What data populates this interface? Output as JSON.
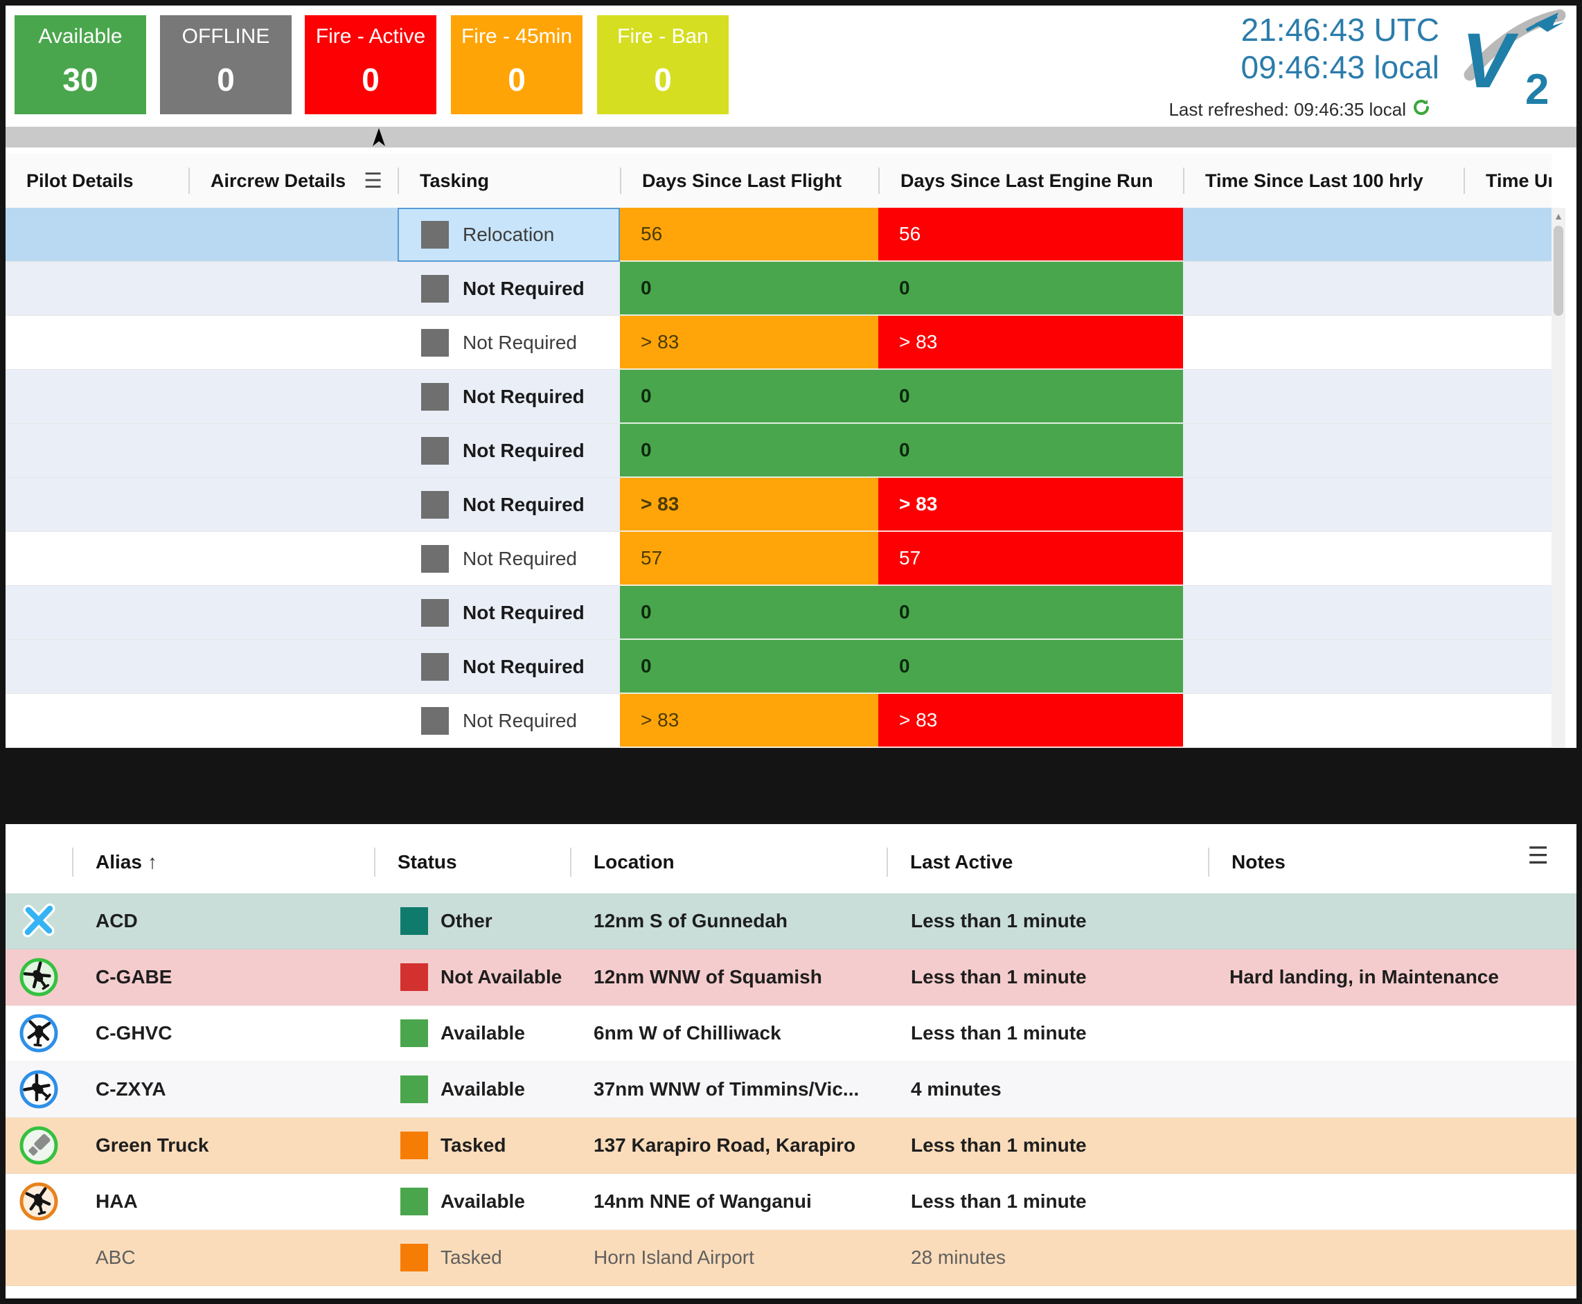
{
  "status_cards": [
    {
      "label": "Available",
      "value": "30",
      "color": "#4aa64d"
    },
    {
      "label": "OFFLINE",
      "value": "0",
      "color": "#787878"
    },
    {
      "label": "Fire - Active",
      "value": "0",
      "color": "#fd0004"
    },
    {
      "label": "Fire - 45min",
      "value": "0",
      "color": "#ffa406"
    },
    {
      "label": "Fire - Ban",
      "value": "0",
      "color": "#d6de21"
    }
  ],
  "clock": {
    "utc": "21:46:43 UTC",
    "local": "09:46:43 local",
    "last_refreshed": "Last refreshed: 09:46:35 local",
    "refresh_icon": "refresh-icon"
  },
  "logo": {
    "letter": "V",
    "sub": "2"
  },
  "top_table": {
    "columns": [
      "Pilot Details",
      "Aircrew Details",
      "Tasking",
      "Days Since Last Flight",
      "Days Since Last Engine Run",
      "Time Since Last 100 hrly",
      "Time Until N"
    ],
    "column_menu_icon": "hamburger-icon",
    "rows": [
      {
        "tasking": "Relocation",
        "bold": false,
        "selected": true,
        "days_since_last_flight": {
          "value": "56",
          "level": "warn"
        },
        "days_since_last_engine_run": {
          "value": "56",
          "level": "alert"
        }
      },
      {
        "tasking": "Not Required",
        "bold": true,
        "selected": false,
        "days_since_last_flight": {
          "value": "0",
          "level": "ok"
        },
        "days_since_last_engine_run": {
          "value": "0",
          "level": "ok"
        }
      },
      {
        "tasking": "Not Required",
        "bold": false,
        "selected": false,
        "days_since_last_flight": {
          "value": "> 83",
          "level": "warn"
        },
        "days_since_last_engine_run": {
          "value": "> 83",
          "level": "alert"
        }
      },
      {
        "tasking": "Not Required",
        "bold": true,
        "selected": false,
        "days_since_last_flight": {
          "value": "0",
          "level": "ok"
        },
        "days_since_last_engine_run": {
          "value": "0",
          "level": "ok"
        }
      },
      {
        "tasking": "Not Required",
        "bold": true,
        "selected": false,
        "days_since_last_flight": {
          "value": "0",
          "level": "ok"
        },
        "days_since_last_engine_run": {
          "value": "0",
          "level": "ok"
        }
      },
      {
        "tasking": "Not Required",
        "bold": true,
        "selected": false,
        "days_since_last_flight": {
          "value": "> 83",
          "level": "warn"
        },
        "days_since_last_engine_run": {
          "value": "> 83",
          "level": "alert"
        }
      },
      {
        "tasking": "Not Required",
        "bold": false,
        "selected": false,
        "days_since_last_flight": {
          "value": "57",
          "level": "warn"
        },
        "days_since_last_engine_run": {
          "value": "57",
          "level": "alert"
        }
      },
      {
        "tasking": "Not Required",
        "bold": true,
        "selected": false,
        "days_since_last_flight": {
          "value": "0",
          "level": "ok"
        },
        "days_since_last_engine_run": {
          "value": "0",
          "level": "ok"
        }
      },
      {
        "tasking": "Not Required",
        "bold": true,
        "selected": false,
        "days_since_last_flight": {
          "value": "0",
          "level": "ok"
        },
        "days_since_last_engine_run": {
          "value": "0",
          "level": "ok"
        }
      },
      {
        "tasking": "Not Required",
        "bold": false,
        "selected": false,
        "days_since_last_flight": {
          "value": "> 83",
          "level": "warn"
        },
        "days_since_last_engine_run": {
          "value": "> 83",
          "level": "alert"
        }
      }
    ],
    "level_colors": {
      "ok": "#4aa64d",
      "warn": "#ffa50a",
      "alert": "#fd0004"
    }
  },
  "bottom_table": {
    "columns": [
      "Alias",
      "Status",
      "Location",
      "Last Active",
      "Notes"
    ],
    "sort_column": "Alias",
    "sort_icon": "arrow-up-icon",
    "column_menu_icon": "hamburger-icon",
    "rows": [
      {
        "icon": "crossed-blue-x-icon",
        "alias": "ACD",
        "status": {
          "label": "Other",
          "color": "#0f7b6d"
        },
        "location": "12nm S of Gunnedah",
        "last_active": "Less than 1 minute",
        "notes": "",
        "row_color": "#c9ded9",
        "muted": false
      },
      {
        "icon": "helicopter-green-circle-icon",
        "alias": "C-GABE",
        "status": {
          "label": "Not Available",
          "color": "#d3312f"
        },
        "location": "12nm WNW of Squamish",
        "last_active": "Less than 1 minute",
        "notes": "Hard landing, in Maintenance",
        "row_color": "#f5cccd",
        "muted": false
      },
      {
        "icon": "helicopter-blue-circle-icon",
        "alias": "C-GHVC",
        "status": {
          "label": "Available",
          "color": "#4aa64d"
        },
        "location": "6nm W of Chilliwack",
        "last_active": "Less than 1 minute",
        "notes": "",
        "row_color": "#ffffff",
        "muted": false
      },
      {
        "icon": "helicopter-blue-circle-tilted-icon",
        "alias": "C-ZXYA",
        "status": {
          "label": "Available",
          "color": "#4aa64d"
        },
        "location": "37nm WNW of Timmins/Vic...",
        "last_active": "4 minutes",
        "notes": "",
        "row_color": "#f7f7f9",
        "muted": false
      },
      {
        "icon": "truck-green-circle-icon",
        "alias": "Green Truck",
        "status": {
          "label": "Tasked",
          "color": "#f57d05"
        },
        "location": "137 Karapiro Road, Karapiro",
        "last_active": "Less than 1 minute",
        "notes": "",
        "row_color": "#fbdcba",
        "muted": false
      },
      {
        "icon": "helicopter-orange-circle-icon",
        "alias": "HAA",
        "status": {
          "label": "Available",
          "color": "#4aa64d"
        },
        "location": "14nm NNE of Wanganui",
        "last_active": "Less than 1 minute",
        "notes": "",
        "row_color": "#ffffff",
        "muted": false
      },
      {
        "icon": "",
        "alias": "ABC",
        "status": {
          "label": "Tasked",
          "color": "#f57d05"
        },
        "location": "Horn Island Airport",
        "last_active": "28 minutes",
        "notes": "",
        "row_color": "#fbdcba",
        "muted": true
      }
    ]
  }
}
